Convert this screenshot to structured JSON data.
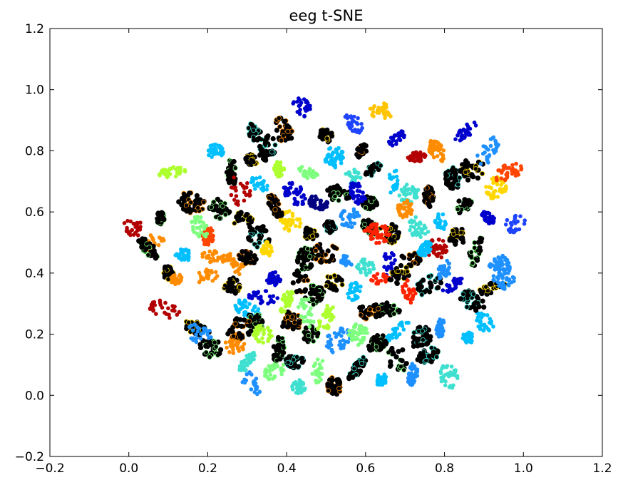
{
  "chart_data": {
    "type": "scatter",
    "title": "eeg t-SNE",
    "xlabel": "",
    "ylabel": "",
    "xlim": [
      -0.2,
      1.2
    ],
    "ylim": [
      -0.2,
      1.2
    ],
    "x_ticks": [
      -0.2,
      0.0,
      0.2,
      0.4,
      0.6,
      0.8,
      1.0,
      1.2
    ],
    "y_ticks": [
      -0.2,
      0.0,
      0.2,
      0.4,
      0.6,
      0.8,
      1.0,
      1.2
    ],
    "x_tick_labels": [
      "−0.2",
      "0.0",
      "0.2",
      "0.4",
      "0.6",
      "0.8",
      "1.0",
      "1.2"
    ],
    "y_tick_labels": [
      "−0.2",
      "0.0",
      "0.2",
      "0.4",
      "0.6",
      "0.8",
      "1.0",
      "1.2"
    ],
    "grid": false,
    "colormap": "jet",
    "clusters": [
      {
        "x": 0.08,
        "y": 0.58,
        "color": "#000000"
      },
      {
        "x": 0.16,
        "y": 0.63,
        "color": "#000000"
      },
      {
        "x": 0.06,
        "y": 0.5,
        "color": "#ff8c00"
      },
      {
        "x": 0.1,
        "y": 0.4,
        "color": "#000000"
      },
      {
        "x": 0.05,
        "y": 0.48,
        "color": "#000000"
      },
      {
        "x": 0.12,
        "y": 0.38,
        "color": "#ff8c00"
      },
      {
        "x": 0.09,
        "y": 0.28,
        "color": "#b30000"
      },
      {
        "x": 0.01,
        "y": 0.55,
        "color": "#b30000"
      },
      {
        "x": 0.2,
        "y": 0.52,
        "color": "#ff4500"
      },
      {
        "x": 0.14,
        "y": 0.46,
        "color": "#00bfff"
      },
      {
        "x": 0.22,
        "y": 0.45,
        "color": "#ff8c00"
      },
      {
        "x": 0.26,
        "y": 0.36,
        "color": "#000000"
      },
      {
        "x": 0.2,
        "y": 0.39,
        "color": "#ff8c00"
      },
      {
        "x": 0.27,
        "y": 0.43,
        "color": "#ff8c00"
      },
      {
        "x": 0.33,
        "y": 0.52,
        "color": "#000000"
      },
      {
        "x": 0.29,
        "y": 0.57,
        "color": "#000000"
      },
      {
        "x": 0.35,
        "y": 0.48,
        "color": "#ffd700"
      },
      {
        "x": 0.3,
        "y": 0.45,
        "color": "#000000"
      },
      {
        "x": 0.18,
        "y": 0.55,
        "color": "#7fff7f"
      },
      {
        "x": 0.17,
        "y": 0.22,
        "color": "#000000"
      },
      {
        "x": 0.21,
        "y": 0.16,
        "color": "#000000"
      },
      {
        "x": 0.27,
        "y": 0.17,
        "color": "#ff8c00"
      },
      {
        "x": 0.18,
        "y": 0.2,
        "color": "#1e90ff"
      },
      {
        "x": 0.3,
        "y": 0.28,
        "color": "#00bfff"
      },
      {
        "x": 0.32,
        "y": 0.24,
        "color": "#000000"
      },
      {
        "x": 0.34,
        "y": 0.32,
        "color": "#0000cd"
      },
      {
        "x": 0.3,
        "y": 0.11,
        "color": "#40e0d0"
      },
      {
        "x": 0.34,
        "y": 0.2,
        "color": "#adff2f"
      },
      {
        "x": 0.31,
        "y": 0.04,
        "color": "#1e90ff"
      },
      {
        "x": 0.37,
        "y": 0.08,
        "color": "#7fff7f"
      },
      {
        "x": 0.42,
        "y": 0.11,
        "color": "#000000"
      },
      {
        "x": 0.43,
        "y": 0.03,
        "color": "#40e0d0"
      },
      {
        "x": 0.48,
        "y": 0.08,
        "color": "#7fff7f"
      },
      {
        "x": 0.52,
        "y": 0.03,
        "color": "#000000"
      },
      {
        "x": 0.58,
        "y": 0.09,
        "color": "#000000"
      },
      {
        "x": 0.64,
        "y": 0.05,
        "color": "#00bfff"
      },
      {
        "x": 0.68,
        "y": 0.12,
        "color": "#000000"
      },
      {
        "x": 0.72,
        "y": 0.07,
        "color": "#1e90ff"
      },
      {
        "x": 0.76,
        "y": 0.13,
        "color": "#000000"
      },
      {
        "x": 0.81,
        "y": 0.06,
        "color": "#40e0d0"
      },
      {
        "x": 0.46,
        "y": 0.2,
        "color": "#000000"
      },
      {
        "x": 0.41,
        "y": 0.24,
        "color": "#000000"
      },
      {
        "x": 0.53,
        "y": 0.18,
        "color": "#1e90ff"
      },
      {
        "x": 0.58,
        "y": 0.2,
        "color": "#7fff7f"
      },
      {
        "x": 0.63,
        "y": 0.17,
        "color": "#000000"
      },
      {
        "x": 0.68,
        "y": 0.21,
        "color": "#00bfff"
      },
      {
        "x": 0.74,
        "y": 0.19,
        "color": "#000000"
      },
      {
        "x": 0.79,
        "y": 0.22,
        "color": "#1e90ff"
      },
      {
        "x": 0.86,
        "y": 0.19,
        "color": "#00bfff"
      },
      {
        "x": 0.9,
        "y": 0.24,
        "color": "#00bfff"
      },
      {
        "x": 0.87,
        "y": 0.31,
        "color": "#000000"
      },
      {
        "x": 0.92,
        "y": 0.35,
        "color": "#000000"
      },
      {
        "x": 0.95,
        "y": 0.38,
        "color": "#1e90ff"
      },
      {
        "x": 0.82,
        "y": 0.36,
        "color": "#0000cd"
      },
      {
        "x": 0.76,
        "y": 0.36,
        "color": "#000000"
      },
      {
        "x": 0.71,
        "y": 0.34,
        "color": "#ff2200"
      },
      {
        "x": 0.66,
        "y": 0.28,
        "color": "#000000"
      },
      {
        "x": 0.61,
        "y": 0.27,
        "color": "#000000"
      },
      {
        "x": 0.57,
        "y": 0.34,
        "color": "#00bfff"
      },
      {
        "x": 0.52,
        "y": 0.37,
        "color": "#000000"
      },
      {
        "x": 0.47,
        "y": 0.33,
        "color": "#000000"
      },
      {
        "x": 0.43,
        "y": 0.38,
        "color": "#000000"
      },
      {
        "x": 0.4,
        "y": 0.31,
        "color": "#adff2f"
      },
      {
        "x": 0.37,
        "y": 0.38,
        "color": "#0000cd"
      },
      {
        "x": 0.45,
        "y": 0.45,
        "color": "#000000"
      },
      {
        "x": 0.5,
        "y": 0.47,
        "color": "#000000"
      },
      {
        "x": 0.55,
        "y": 0.44,
        "color": "#1e90ff"
      },
      {
        "x": 0.6,
        "y": 0.42,
        "color": "#40e0d0"
      },
      {
        "x": 0.66,
        "y": 0.43,
        "color": "#0000cd"
      },
      {
        "x": 0.72,
        "y": 0.45,
        "color": "#000000"
      },
      {
        "x": 0.78,
        "y": 0.48,
        "color": "#b30000"
      },
      {
        "x": 0.83,
        "y": 0.52,
        "color": "#000000"
      },
      {
        "x": 0.88,
        "y": 0.47,
        "color": "#000000"
      },
      {
        "x": 0.94,
        "y": 0.42,
        "color": "#1e90ff"
      },
      {
        "x": 0.98,
        "y": 0.56,
        "color": "#1e44ff"
      },
      {
        "x": 0.91,
        "y": 0.58,
        "color": "#0000cd"
      },
      {
        "x": 0.85,
        "y": 0.62,
        "color": "#000000"
      },
      {
        "x": 0.79,
        "y": 0.57,
        "color": "#00bfff"
      },
      {
        "x": 0.73,
        "y": 0.55,
        "color": "#40e0d0"
      },
      {
        "x": 0.66,
        "y": 0.53,
        "color": "#000000"
      },
      {
        "x": 0.61,
        "y": 0.55,
        "color": "#000000"
      },
      {
        "x": 0.56,
        "y": 0.58,
        "color": "#1e90ff"
      },
      {
        "x": 0.51,
        "y": 0.55,
        "color": "#000000"
      },
      {
        "x": 0.46,
        "y": 0.53,
        "color": "#000000"
      },
      {
        "x": 0.41,
        "y": 0.57,
        "color": "#ffd700"
      },
      {
        "x": 0.37,
        "y": 0.62,
        "color": "#000000"
      },
      {
        "x": 0.42,
        "y": 0.66,
        "color": "#0000cd"
      },
      {
        "x": 0.48,
        "y": 0.63,
        "color": "#000080"
      },
      {
        "x": 0.53,
        "y": 0.66,
        "color": "#000000"
      },
      {
        "x": 0.57,
        "y": 0.71,
        "color": "#40e0d0"
      },
      {
        "x": 0.62,
        "y": 0.74,
        "color": "#000000"
      },
      {
        "x": 0.67,
        "y": 0.7,
        "color": "#00bfff"
      },
      {
        "x": 0.71,
        "y": 0.66,
        "color": "#40e0d0"
      },
      {
        "x": 0.76,
        "y": 0.65,
        "color": "#000000"
      },
      {
        "x": 0.82,
        "y": 0.71,
        "color": "#000000"
      },
      {
        "x": 0.87,
        "y": 0.74,
        "color": "#000000"
      },
      {
        "x": 0.91,
        "y": 0.8,
        "color": "#1e90ff"
      },
      {
        "x": 0.85,
        "y": 0.86,
        "color": "#0000cd"
      },
      {
        "x": 0.78,
        "y": 0.8,
        "color": "#ff8c00"
      },
      {
        "x": 0.73,
        "y": 0.78,
        "color": "#b30000"
      },
      {
        "x": 0.68,
        "y": 0.84,
        "color": "#0000cd"
      },
      {
        "x": 0.64,
        "y": 0.93,
        "color": "#ffc400"
      },
      {
        "x": 0.57,
        "y": 0.89,
        "color": "#1e44ff"
      },
      {
        "x": 0.5,
        "y": 0.85,
        "color": "#000000"
      },
      {
        "x": 0.44,
        "y": 0.94,
        "color": "#0000cd"
      },
      {
        "x": 0.39,
        "y": 0.87,
        "color": "#000000"
      },
      {
        "x": 0.35,
        "y": 0.81,
        "color": "#000000"
      },
      {
        "x": 0.31,
        "y": 0.77,
        "color": "#000000"
      },
      {
        "x": 0.26,
        "y": 0.73,
        "color": "#000000"
      },
      {
        "x": 0.22,
        "y": 0.8,
        "color": "#00bfff"
      },
      {
        "x": 0.32,
        "y": 0.86,
        "color": "#000000"
      },
      {
        "x": 0.28,
        "y": 0.67,
        "color": "#b30000"
      },
      {
        "x": 0.23,
        "y": 0.61,
        "color": "#000000"
      },
      {
        "x": 0.33,
        "y": 0.69,
        "color": "#00bfff"
      },
      {
        "x": 0.38,
        "y": 0.74,
        "color": "#adff2f"
      },
      {
        "x": 0.45,
        "y": 0.73,
        "color": "#7fff7f"
      },
      {
        "x": 0.52,
        "y": 0.78,
        "color": "#00bfff"
      },
      {
        "x": 0.59,
        "y": 0.8,
        "color": "#000000"
      },
      {
        "x": 0.7,
        "y": 0.61,
        "color": "#ff8c00"
      },
      {
        "x": 0.93,
        "y": 0.68,
        "color": "#ffd700"
      },
      {
        "x": 0.96,
        "y": 0.73,
        "color": "#ff4500"
      },
      {
        "x": 0.11,
        "y": 0.73,
        "color": "#adff2f"
      },
      {
        "x": 0.45,
        "y": 0.27,
        "color": "#7fff7f"
      },
      {
        "x": 0.5,
        "y": 0.25,
        "color": "#adff2f"
      },
      {
        "x": 0.38,
        "y": 0.15,
        "color": "#000000"
      },
      {
        "x": 0.28,
        "y": 0.22,
        "color": "#000000"
      },
      {
        "x": 0.64,
        "y": 0.38,
        "color": "#ff2200"
      },
      {
        "x": 0.69,
        "y": 0.4,
        "color": "#000000"
      },
      {
        "x": 0.61,
        "y": 0.63,
        "color": "#000000"
      },
      {
        "x": 0.58,
        "y": 0.66,
        "color": "#0000cd"
      },
      {
        "x": 0.63,
        "y": 0.53,
        "color": "#ff2200"
      },
      {
        "x": 0.75,
        "y": 0.48,
        "color": "#00bfff"
      },
      {
        "x": 0.8,
        "y": 0.41,
        "color": "#1e90ff"
      }
    ]
  }
}
